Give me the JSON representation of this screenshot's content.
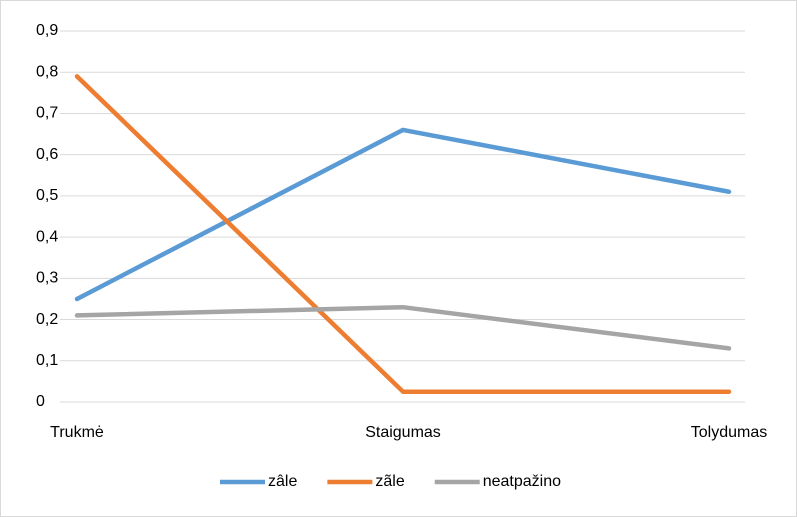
{
  "chart_data": {
    "type": "line",
    "categories": [
      "Trukmė",
      "Staigumas",
      "Tolydumas"
    ],
    "series": [
      {
        "name": "zâle",
        "color": "#5b9bd5",
        "values": [
          0.25,
          0.66,
          0.51
        ]
      },
      {
        "name": "zãle",
        "color": "#ed7d31",
        "values": [
          0.79,
          0.025,
          0.025
        ]
      },
      {
        "name": "neatpažino",
        "color": "#a5a5a5",
        "values": [
          0.21,
          0.23,
          0.13
        ]
      }
    ],
    "ylim": [
      0,
      0.9
    ],
    "yticks": [
      0,
      {
        "value": 0.1,
        "label": "0,1"
      },
      {
        "value": 0.2,
        "label": "0,2"
      },
      {
        "value": 0.3,
        "label": "0,3"
      },
      {
        "value": 0.4,
        "label": "0,4"
      },
      {
        "value": 0.5,
        "label": "0,5"
      },
      {
        "value": 0.6,
        "label": "0,6"
      },
      {
        "value": 0.7,
        "label": "0,7"
      },
      {
        "value": 0.8,
        "label": "0,8"
      },
      {
        "value": 0.9,
        "label": "0,9"
      }
    ],
    "grid": true,
    "legend": "bottom"
  }
}
